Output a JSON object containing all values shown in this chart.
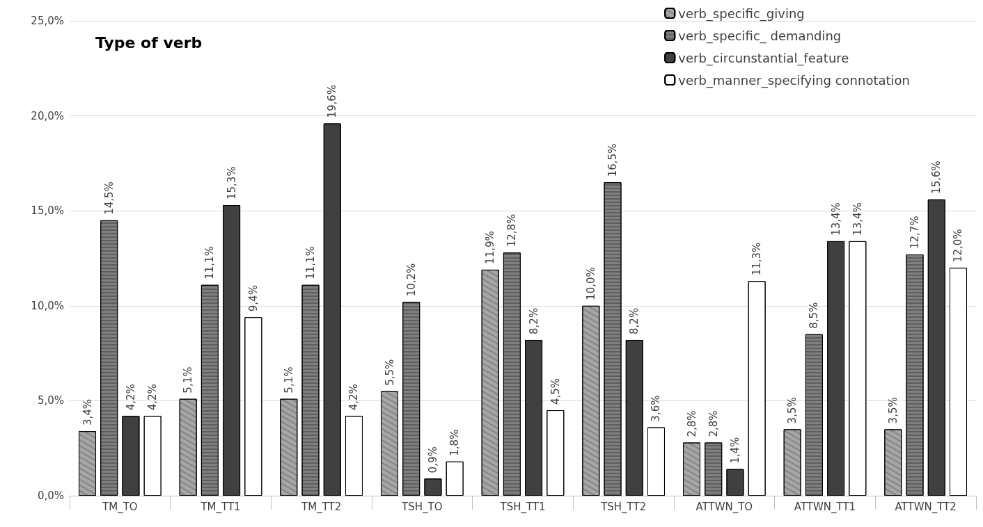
{
  "chart_data": {
    "type": "bar",
    "title": "Type of verb",
    "categories": [
      "TM_TO",
      "TM_TT1",
      "TM_TT2",
      "TSH_TO",
      "TSH_TT1",
      "TSH_TT2",
      "ATTWN_TO",
      "ATTWN_TT1",
      "ATTWN_TT2"
    ],
    "series": [
      {
        "name": "verb_specific_giving",
        "color": "#a6a6a6",
        "values": [
          3.4,
          5.1,
          5.1,
          5.5,
          11.9,
          10.0,
          2.8,
          3.5,
          3.5
        ],
        "value_labels": [
          "3,4%",
          "5,1%",
          "5,1%",
          "5,5%",
          "11,9%",
          "10,0%",
          "2,8%",
          "3,5%",
          "3,5%"
        ]
      },
      {
        "name": "verb_specific_ demanding",
        "color": "#7f7f7f",
        "values": [
          14.5,
          11.1,
          11.1,
          10.2,
          12.8,
          16.5,
          2.8,
          8.5,
          12.7
        ],
        "value_labels": [
          "14,5%",
          "11,1%",
          "11,1%",
          "10,2%",
          "12,8%",
          "16,5%",
          "2,8%",
          "8,5%",
          "12,7%"
        ]
      },
      {
        "name": "verb_circunstantial_feature",
        "color": "#404040",
        "values": [
          4.2,
          15.3,
          19.6,
          0.9,
          8.2,
          8.2,
          1.4,
          13.4,
          15.6
        ],
        "value_labels": [
          "4,2%",
          "15,3%",
          "19,6%",
          "0,9%",
          "8,2%",
          "8,2%",
          "1,4%",
          "13,4%",
          "15,6%"
        ]
      },
      {
        "name": "verb_manner_specifying connotation",
        "color": "#ffffff",
        "values": [
          4.2,
          9.4,
          4.2,
          1.8,
          4.5,
          3.6,
          11.3,
          13.4,
          12.0
        ],
        "value_labels": [
          "4,2%",
          "9,4%",
          "4,2%",
          "1,8%",
          "4,5%",
          "3,6%",
          "11,3%",
          "13,4%",
          "12,0%"
        ]
      }
    ],
    "ylim": [
      0,
      25
    ],
    "yticks": [
      {
        "value": 0,
        "label": "0,0%"
      },
      {
        "value": 5,
        "label": "5,0%"
      },
      {
        "value": 10,
        "label": "10,0%"
      },
      {
        "value": 15,
        "label": "15,0%"
      },
      {
        "value": 20,
        "label": "20,0%"
      },
      {
        "value": 25,
        "label": "25,0%"
      }
    ],
    "grid": "y",
    "legend": "top right"
  }
}
